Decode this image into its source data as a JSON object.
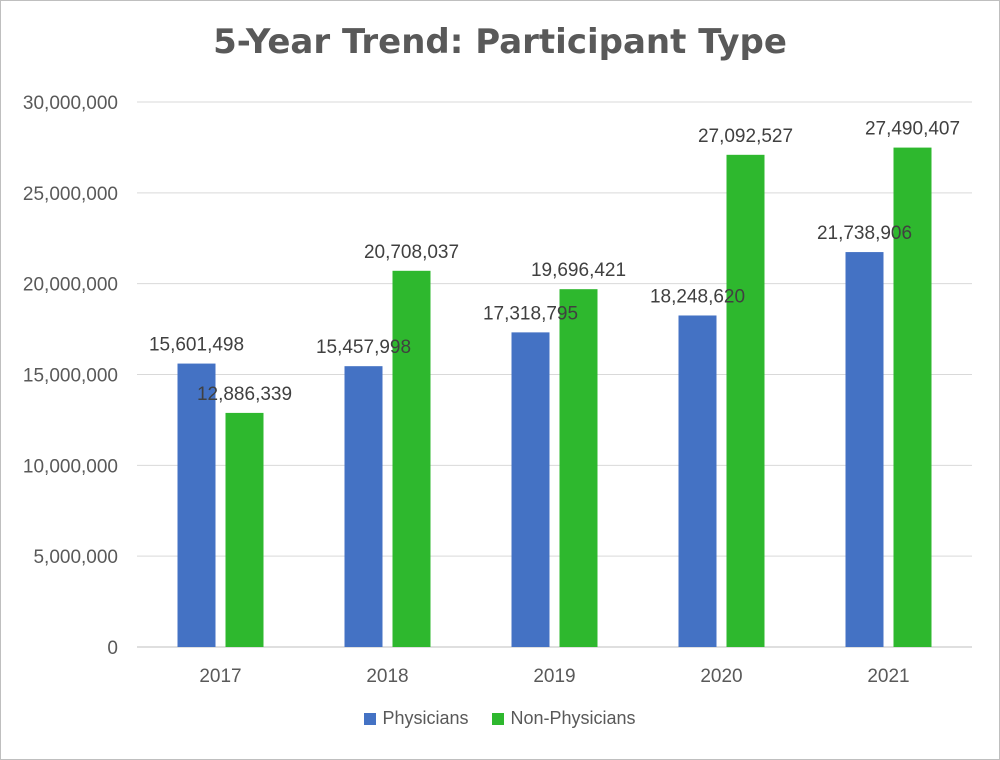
{
  "chart_data": {
    "type": "bar",
    "title": "5-Year Trend: Participant Type",
    "categories": [
      "2017",
      "2018",
      "2019",
      "2020",
      "2021"
    ],
    "series": [
      {
        "name": "Physicians",
        "color": "#4472c4",
        "values": [
          15601498,
          15457998,
          17318795,
          18248620,
          21738906
        ],
        "labels": [
          "15,601,498",
          "15,457,998",
          "17,318,795",
          "18,248,620",
          "21,738,906"
        ]
      },
      {
        "name": "Non-Physicians",
        "color": "#2eb82e",
        "values": [
          12886339,
          20708037,
          19696421,
          27092527,
          27490407
        ],
        "labels": [
          "12,886,339",
          "20,708,037",
          "19,696,421",
          "27,092,527",
          "27,490,407"
        ]
      }
    ],
    "ylim": [
      0,
      30000000
    ],
    "yticks": [
      0,
      5000000,
      10000000,
      15000000,
      20000000,
      25000000,
      30000000
    ],
    "ytick_labels": [
      "0",
      "5,000,000",
      "10,000,000",
      "15,000,000",
      "20,000,000",
      "25,000,000",
      "30,000,000"
    ],
    "grid": true,
    "legend_position": "bottom"
  }
}
